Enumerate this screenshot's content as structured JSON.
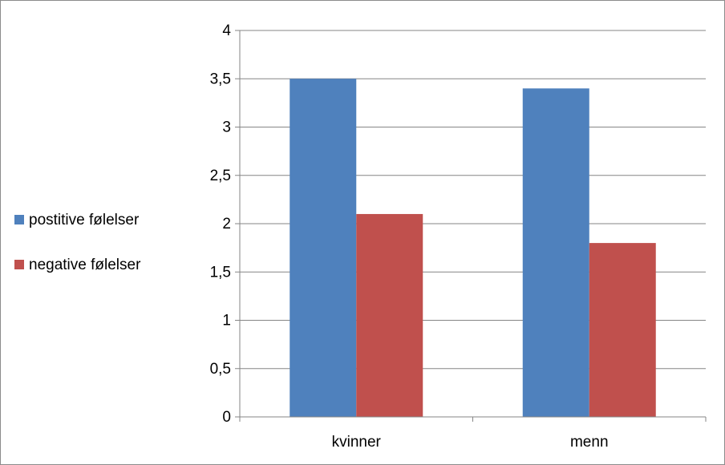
{
  "chart_data": {
    "type": "bar",
    "categories": [
      "kvinner",
      "menn"
    ],
    "series": [
      {
        "name": "postitive følelser",
        "values": [
          3.5,
          3.4
        ],
        "color": "#4f81bd"
      },
      {
        "name": "negative følelser",
        "values": [
          2.1,
          1.8
        ],
        "color": "#c0504d"
      }
    ],
    "ylim": [
      0,
      4
    ],
    "yticks": [
      0,
      0.5,
      1,
      1.5,
      2,
      2.5,
      3,
      3.5,
      4
    ],
    "ytick_labels": [
      "0",
      "0,5",
      "1",
      "1,5",
      "2",
      "2,5",
      "3",
      "3,5",
      "4"
    ],
    "grid": true,
    "gridline_color": "#868686",
    "legend_position": "left"
  }
}
